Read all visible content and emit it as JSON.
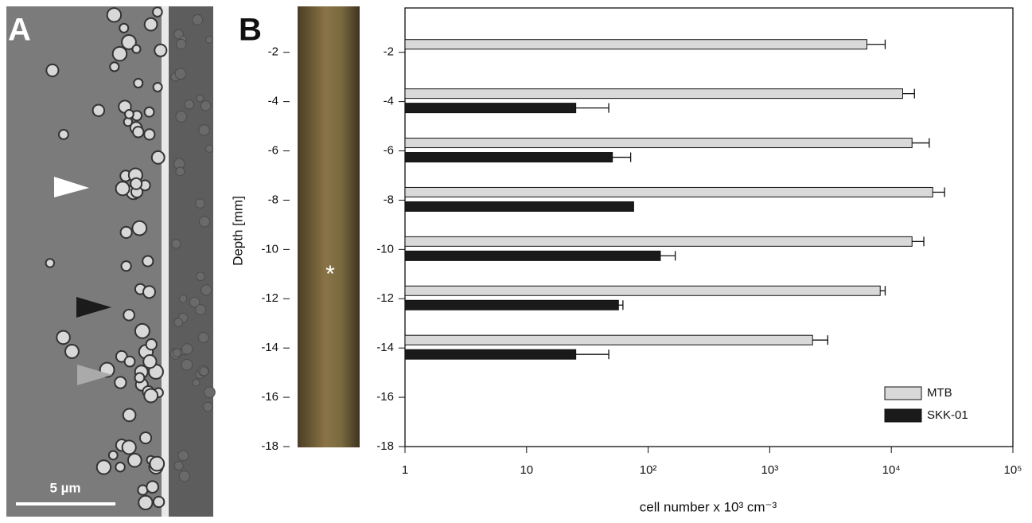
{
  "panels": {
    "a_label": "A",
    "b_label": "B",
    "scale_bar": "5 µm",
    "core_marker": "*"
  },
  "chart_data": {
    "type": "bar",
    "orientation": "horizontal",
    "y_label": "Depth [mm]",
    "x_label": "cell number x 10³ cm⁻³",
    "categories": [
      -2,
      -4,
      -6,
      -8,
      -10,
      -12,
      -14
    ],
    "series": [
      {
        "name": "MTB",
        "color": "#d9d9d9",
        "values": [
          6300,
          12400,
          14800,
          21900,
          14800,
          8100,
          2250
        ],
        "errors": [
          2600,
          3100,
          5700,
          5500,
          3700,
          800,
          750
        ]
      },
      {
        "name": "SKK-01",
        "color": "#1a1a1a",
        "values": [
          null,
          25.4,
          50.8,
          76,
          126,
          57,
          25.4
        ],
        "errors": [
          null,
          22,
          21,
          null,
          41,
          5,
          22
        ]
      }
    ],
    "x_log": true,
    "xlim": [
      1,
      100000
    ],
    "xticks": [
      1,
      10,
      {
        "value": 100,
        "label": "10²"
      },
      {
        "value": 1000,
        "label": "10³"
      },
      {
        "value": 10000,
        "label": "10⁴"
      },
      {
        "value": 100000,
        "label": "10⁵"
      }
    ],
    "ylim": [
      -18,
      -0.2
    ],
    "yticks": [
      -2,
      -4,
      -6,
      -8,
      -10,
      -12,
      -14,
      -16,
      -18
    ],
    "legend": "lower right"
  }
}
